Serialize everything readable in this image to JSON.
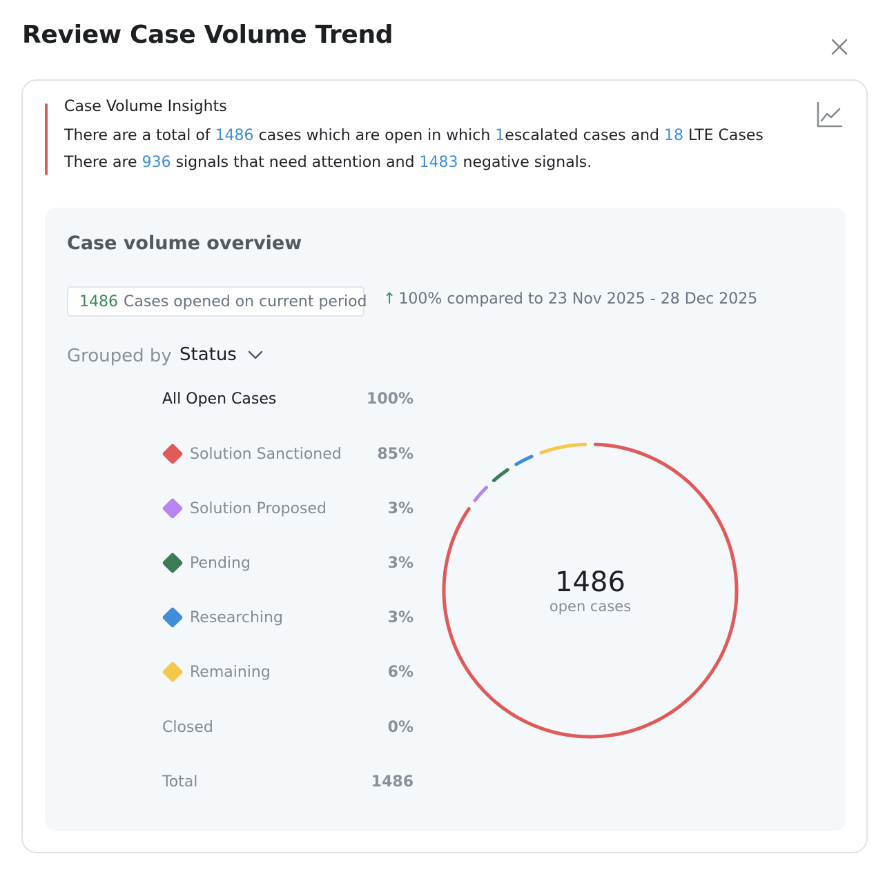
{
  "modal": {
    "title": "Review Case Volume Trend"
  },
  "insights": {
    "title": "Case Volume Insights",
    "line1": {
      "p1": "There are a total of",
      "total": "1486",
      "p2": "cases which are open in which",
      "escalated": "1",
      "p3": "escalated cases and",
      "lte": "18",
      "p4": "LTE Cases"
    },
    "line2": {
      "p1": "There are",
      "attention": "936",
      "p2": "signals that need attention and",
      "negative": "1483",
      "p3": "negative signals."
    }
  },
  "overview": {
    "title": "Case volume overview",
    "period_count": "1486",
    "period_text": "Cases opened on current period",
    "compare_arrow": "↑",
    "compare_text": "100% compared to 23 Nov 2025 - 28 Dec 2025",
    "grouped_by_label": "Grouped by",
    "grouped_by_value": "Status",
    "rows": [
      {
        "label": "All Open Cases",
        "pct": "100%"
      },
      {
        "label": "Solution Sanctioned",
        "pct": "85%",
        "color": "#e05a5a"
      },
      {
        "label": "Solution Proposed",
        "pct": "3%",
        "color": "#b784f0"
      },
      {
        "label": "Pending",
        "pct": "3%",
        "color": "#3a7d55"
      },
      {
        "label": "Researching",
        "pct": "3%",
        "color": "#3f8fd6"
      },
      {
        "label": "Remaining",
        "pct": "6%",
        "color": "#f5c84c"
      },
      {
        "label": "Closed",
        "pct": "0%"
      },
      {
        "label": "Total",
        "pct": "1486"
      }
    ],
    "donut": {
      "center_value": "1486",
      "center_label": "open cases"
    }
  },
  "chart_data": {
    "type": "pie",
    "variant": "donut",
    "categories": [
      "Solution Sanctioned",
      "Solution Proposed",
      "Pending",
      "Researching",
      "Remaining"
    ],
    "values": [
      85,
      3,
      3,
      3,
      6
    ],
    "colors": [
      "#e05a5a",
      "#b784f0",
      "#3a7d55",
      "#3f8fd6",
      "#f5c84c"
    ]
  }
}
